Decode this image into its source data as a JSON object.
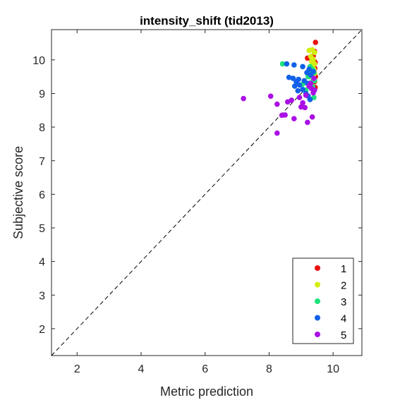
{
  "chart_data": {
    "type": "scatter",
    "title": "intensity_shift (tid2013)",
    "xlabel": "Metric prediction",
    "ylabel": "Subjective score",
    "xlim": [
      1.2,
      10.9
    ],
    "ylim": [
      1.2,
      10.9
    ],
    "xticks": [
      2,
      4,
      6,
      8,
      10
    ],
    "yticks": [
      2,
      3,
      4,
      5,
      6,
      7,
      8,
      9,
      10
    ],
    "grid": false,
    "legend_position": "bottom-right",
    "reference_line": "y = x (dashed)",
    "series": [
      {
        "name": "1",
        "color": "#e8120e",
        "points": [
          [
            9.45,
            10.52
          ],
          [
            9.42,
            10.25
          ],
          [
            9.38,
            10.12
          ],
          [
            9.2,
            10.05
          ],
          [
            9.4,
            9.98
          ],
          [
            9.44,
            9.92
          ],
          [
            9.38,
            9.85
          ],
          [
            9.43,
            9.75
          ],
          [
            9.4,
            9.65
          ],
          [
            9.45,
            9.5
          ],
          [
            9.42,
            9.35
          ],
          [
            9.44,
            9.18
          ]
        ]
      },
      {
        "name": "2",
        "color": "#d4ee12",
        "points": [
          [
            9.25,
            10.28
          ],
          [
            9.35,
            10.3
          ],
          [
            9.42,
            10.22
          ],
          [
            9.3,
            10.1
          ],
          [
            9.38,
            10.02
          ],
          [
            9.33,
            9.95
          ],
          [
            9.42,
            9.88
          ],
          [
            9.36,
            9.82
          ],
          [
            9.28,
            9.78
          ],
          [
            9.4,
            9.72
          ],
          [
            9.34,
            9.66
          ],
          [
            9.42,
            9.6
          ],
          [
            9.38,
            9.55
          ],
          [
            9.3,
            9.5
          ]
        ]
      },
      {
        "name": "3",
        "color": "#1de27a",
        "points": [
          [
            8.42,
            9.88
          ],
          [
            9.28,
            9.8
          ],
          [
            9.35,
            9.72
          ],
          [
            9.4,
            9.62
          ],
          [
            9.32,
            9.55
          ],
          [
            9.22,
            9.5
          ],
          [
            9.38,
            9.45
          ],
          [
            9.42,
            9.38
          ],
          [
            9.3,
            9.32
          ],
          [
            9.05,
            9.28
          ],
          [
            9.36,
            9.2
          ],
          [
            9.15,
            9.1
          ],
          [
            9.4,
            8.88
          ],
          [
            9.3,
            9.62
          ],
          [
            9.38,
            9.68
          ]
        ]
      },
      {
        "name": "4",
        "color": "#1060e8",
        "points": [
          [
            8.55,
            9.88
          ],
          [
            8.78,
            9.85
          ],
          [
            9.05,
            9.8
          ],
          [
            9.25,
            9.72
          ],
          [
            9.18,
            9.62
          ],
          [
            9.3,
            9.55
          ],
          [
            8.62,
            9.48
          ],
          [
            8.75,
            9.45
          ],
          [
            8.92,
            9.42
          ],
          [
            9.1,
            9.38
          ],
          [
            8.85,
            9.35
          ],
          [
            9.2,
            9.3
          ],
          [
            8.95,
            9.25
          ],
          [
            8.8,
            9.22
          ],
          [
            9.05,
            9.12
          ],
          [
            8.9,
            9.08
          ],
          [
            9.15,
            9.0
          ],
          [
            9.22,
            8.92
          ],
          [
            9.28,
            8.82
          ],
          [
            9.38,
            9.65
          ]
        ]
      },
      {
        "name": "5",
        "color": "#aa10e6",
        "points": [
          [
            7.2,
            8.85
          ],
          [
            8.05,
            8.92
          ],
          [
            8.4,
            8.35
          ],
          [
            8.5,
            8.36
          ],
          [
            8.58,
            8.75
          ],
          [
            8.7,
            8.8
          ],
          [
            8.25,
            8.68
          ],
          [
            8.78,
            8.25
          ],
          [
            8.95,
            8.88
          ],
          [
            9.05,
            8.72
          ],
          [
            9.12,
            8.58
          ],
          [
            9.2,
            8.14
          ],
          [
            9.35,
            8.3
          ],
          [
            8.25,
            7.82
          ],
          [
            9.4,
            9.45
          ],
          [
            9.25,
            9.22
          ],
          [
            9.32,
            9.15
          ],
          [
            9.38,
            9.02
          ],
          [
            9.15,
            8.95
          ],
          [
            9.0,
            8.6
          ],
          [
            9.3,
            9.3
          ],
          [
            9.42,
            9.1
          ]
        ]
      }
    ]
  }
}
